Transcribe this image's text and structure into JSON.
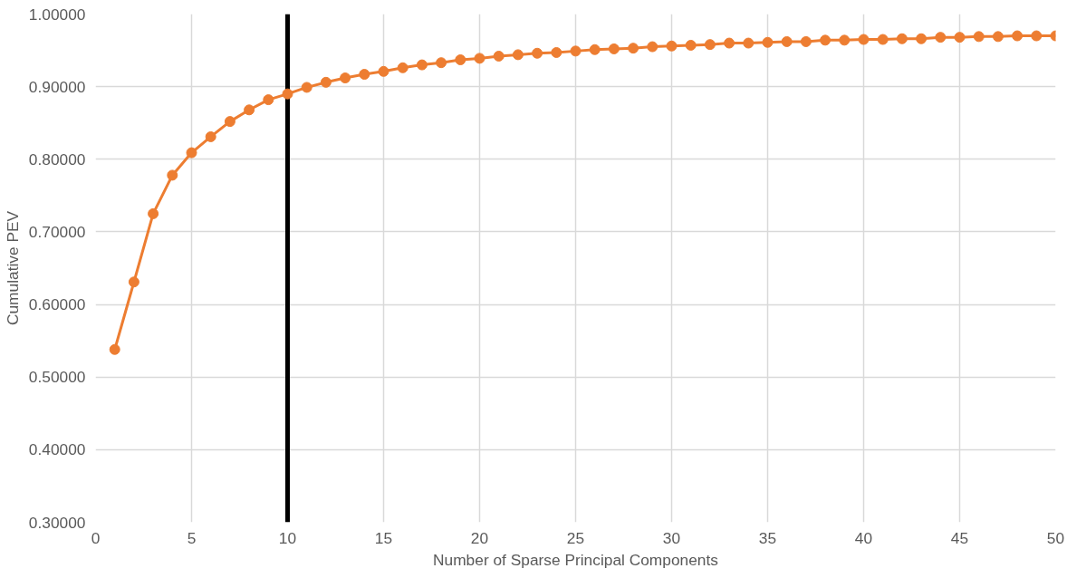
{
  "chart_data": {
    "type": "line",
    "xlabel": "Number of Sparse Principal Components",
    "ylabel": "Cumulative PEV",
    "x": [
      1,
      2,
      3,
      4,
      5,
      6,
      7,
      8,
      9,
      10,
      11,
      12,
      13,
      14,
      15,
      16,
      17,
      18,
      19,
      20,
      21,
      22,
      23,
      24,
      25,
      26,
      27,
      28,
      29,
      30,
      31,
      32,
      33,
      34,
      35,
      36,
      37,
      38,
      39,
      40,
      41,
      42,
      43,
      44,
      45,
      46,
      47,
      48,
      49,
      50
    ],
    "series": [
      {
        "color": "#ed7d31",
        "values": [
          0.538,
          0.631,
          0.725,
          0.778,
          0.809,
          0.831,
          0.852,
          0.868,
          0.882,
          0.89,
          0.899,
          0.906,
          0.912,
          0.917,
          0.921,
          0.926,
          0.93,
          0.933,
          0.937,
          0.939,
          0.942,
          0.944,
          0.946,
          0.947,
          0.949,
          0.951,
          0.952,
          0.953,
          0.955,
          0.956,
          0.957,
          0.958,
          0.96,
          0.96,
          0.961,
          0.962,
          0.962,
          0.964,
          0.964,
          0.965,
          0.965,
          0.966,
          0.966,
          0.968,
          0.968,
          0.969,
          0.969,
          0.97,
          0.97,
          0.97
        ]
      }
    ],
    "xlim": [
      0,
      50
    ],
    "xticks": [
      0,
      5,
      10,
      15,
      20,
      25,
      30,
      35,
      40,
      45,
      50
    ],
    "ylim": [
      0.3,
      1.0
    ],
    "yticks": [
      {
        "value": 0.3,
        "label": "0.30000"
      },
      {
        "value": 0.4,
        "label": "0.40000"
      },
      {
        "value": 0.5,
        "label": "0.50000"
      },
      {
        "value": 0.6,
        "label": "0.60000"
      },
      {
        "value": 0.7,
        "label": "0.70000"
      },
      {
        "value": 0.8,
        "label": "0.80000"
      },
      {
        "value": 0.9,
        "label": "0.90000"
      },
      {
        "value": 1.0,
        "label": "1.00000"
      }
    ],
    "ref_lines": [
      {
        "axis": "x",
        "value": 10,
        "color": "#000000"
      }
    ],
    "grid": true,
    "marker": "circle",
    "line_style": "solid"
  }
}
